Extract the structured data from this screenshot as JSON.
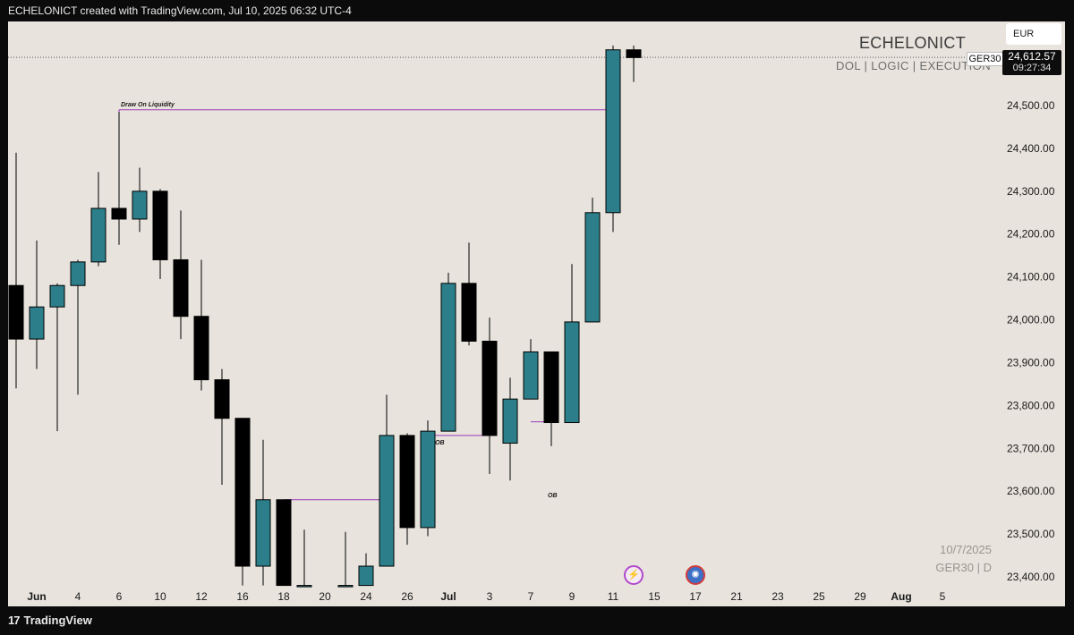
{
  "header": {
    "caption": "ECHELONICT created with TradingView.com, Jul 10, 2025 06:32 UTC-4"
  },
  "brand": {
    "title": "ECHELONICT",
    "subtitle": "DOL  |  LOGIC  |  EXECUTION"
  },
  "currency": "EUR",
  "symbol_tag": "GER30",
  "price_tag": {
    "price": "24,612.57",
    "countdown": "09:27:34"
  },
  "watermark": {
    "date": "10/7/2025",
    "symbol": "GER30 | D"
  },
  "footer": {
    "logo_text": "17",
    "brand": "TradingView"
  },
  "event_icons": {
    "bolt": "lightning-icon",
    "globe": "globe-icon"
  },
  "colors": {
    "background": "#e8e3dc",
    "bull": "#2c7f8a",
    "bear": "#000000",
    "annotation": "#9c3cb8",
    "frame": "#0b0b0c"
  },
  "chart_data": {
    "type": "candlestick",
    "symbol": "GER30",
    "timeframe": "D",
    "ylim": [
      23380,
      24670
    ],
    "y_ticks": [
      23400,
      23500,
      23600,
      23700,
      23800,
      23900,
      24000,
      24100,
      24200,
      24300,
      24400,
      24500
    ],
    "y_tick_labels": [
      "23,400.00",
      "23,500.00",
      "23,600.00",
      "23,700.00",
      "23,800.00",
      "23,900.00",
      "24,000.00",
      "24,100.00",
      "24,200.00",
      "24,300.00",
      "24,400.00",
      "24,500.00"
    ],
    "x_tick_labels": [
      {
        "label": "Jun",
        "slot": 1,
        "bold": true
      },
      {
        "label": "4",
        "slot": 3
      },
      {
        "label": "6",
        "slot": 5
      },
      {
        "label": "10",
        "slot": 7
      },
      {
        "label": "12",
        "slot": 9
      },
      {
        "label": "16",
        "slot": 11
      },
      {
        "label": "18",
        "slot": 13
      },
      {
        "label": "20",
        "slot": 15
      },
      {
        "label": "24",
        "slot": 17
      },
      {
        "label": "26",
        "slot": 19
      },
      {
        "label": "Jul",
        "slot": 21,
        "bold": true
      },
      {
        "label": "3",
        "slot": 23
      },
      {
        "label": "7",
        "slot": 25
      },
      {
        "label": "9",
        "slot": 27
      },
      {
        "label": "11",
        "slot": 29
      },
      {
        "label": "15",
        "slot": 31
      },
      {
        "label": "17",
        "slot": 33
      },
      {
        "label": "21",
        "slot": 35
      },
      {
        "label": "23",
        "slot": 37
      },
      {
        "label": "25",
        "slot": 39
      },
      {
        "label": "29",
        "slot": 41
      },
      {
        "label": "Aug",
        "slot": 43,
        "bold": true
      },
      {
        "label": "5",
        "slot": 45
      }
    ],
    "candles": [
      {
        "slot": 0,
        "open": 24080,
        "high": 24390,
        "low": 23840,
        "close": 23955
      },
      {
        "slot": 1,
        "open": 23955,
        "high": 24185,
        "low": 23885,
        "close": 24030
      },
      {
        "slot": 2,
        "open": 24030,
        "high": 24085,
        "low": 23740,
        "close": 24080
      },
      {
        "slot": 3,
        "open": 24080,
        "high": 24140,
        "low": 23825,
        "close": 24135
      },
      {
        "slot": 4,
        "open": 24135,
        "high": 24345,
        "low": 24125,
        "close": 24260
      },
      {
        "slot": 5,
        "open": 24260,
        "high": 24485,
        "low": 24175,
        "close": 24235
      },
      {
        "slot": 6,
        "open": 24235,
        "high": 24355,
        "low": 24205,
        "close": 24300
      },
      {
        "slot": 7,
        "open": 24300,
        "high": 24305,
        "low": 24095,
        "close": 24140
      },
      {
        "slot": 8,
        "open": 24140,
        "high": 24255,
        "low": 23955,
        "close": 24008
      },
      {
        "slot": 9,
        "open": 24008,
        "high": 24140,
        "low": 23835,
        "close": 23860
      },
      {
        "slot": 10,
        "open": 23860,
        "high": 23885,
        "low": 23615,
        "close": 23770
      },
      {
        "slot": 11,
        "open": 23770,
        "high": 23770,
        "low": 23380,
        "close": 23425
      },
      {
        "slot": 12,
        "open": 23425,
        "high": 23720,
        "low": 23380,
        "close": 23580
      },
      {
        "slot": 13,
        "open": 23580,
        "high": 23580,
        "low": 23380,
        "close": 23380
      },
      {
        "slot": 14,
        "open": 23380,
        "high": 23510,
        "low": 23380,
        "close": 23380
      },
      {
        "slot": 16,
        "open": 23380,
        "high": 23505,
        "low": 23380,
        "close": 23380
      },
      {
        "slot": 17,
        "open": 23380,
        "high": 23455,
        "low": 23380,
        "close": 23425
      },
      {
        "slot": 18,
        "open": 23425,
        "high": 23825,
        "low": 23425,
        "close": 23730
      },
      {
        "slot": 19,
        "open": 23730,
        "high": 23735,
        "low": 23475,
        "close": 23515
      },
      {
        "slot": 20,
        "open": 23515,
        "high": 23765,
        "low": 23495,
        "close": 23740
      },
      {
        "slot": 21,
        "open": 23740,
        "high": 24110,
        "low": 23740,
        "close": 24085
      },
      {
        "slot": 22,
        "open": 24085,
        "high": 24180,
        "low": 23940,
        "close": 23950
      },
      {
        "slot": 23,
        "open": 23950,
        "high": 24005,
        "low": 23640,
        "close": 23730
      },
      {
        "slot": 24,
        "open": 23712,
        "high": 23865,
        "low": 23625,
        "close": 23815
      },
      {
        "slot": 25,
        "open": 23815,
        "high": 23955,
        "low": 23815,
        "close": 23925
      },
      {
        "slot": 26,
        "open": 23925,
        "high": 23925,
        "low": 23705,
        "close": 23760
      },
      {
        "slot": 27,
        "open": 23760,
        "high": 24130,
        "low": 23760,
        "close": 23995
      },
      {
        "slot": 28,
        "open": 23995,
        "high": 24285,
        "low": 23995,
        "close": 24250
      },
      {
        "slot": 29,
        "open": 24250,
        "high": 24640,
        "low": 24205,
        "close": 24630
      },
      {
        "slot": 30,
        "open": 24630,
        "high": 24640,
        "low": 24555,
        "close": 24612
      }
    ],
    "current_price": 24612.57,
    "annotations": [
      {
        "text": "Draw On Liquidity",
        "level": 24490,
        "from_slot": 5,
        "to_slot": 29
      },
      {
        "text": "+OB",
        "level": 23730,
        "from_slot": 20,
        "to_slot": 23
      },
      {
        "text": "OB",
        "level": 23580,
        "from_slot": 13,
        "to_slot": 18
      },
      {
        "text": "",
        "level": 23762,
        "from_slot": 25,
        "to_slot": 26
      }
    ]
  }
}
